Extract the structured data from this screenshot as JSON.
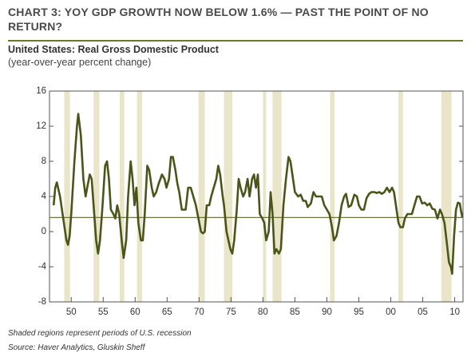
{
  "chart_data": {
    "type": "line",
    "title": "CHART 3: YOY GDP GROWTH NOW BELOW 1.6% — PAST THE POINT OF NO RETURN?",
    "subtitle": "United States: Real Gross Domestic Product",
    "y_label": "(year-over-year percent change)",
    "notes": [
      "Shaded regions represent periods of U.S. recession",
      "Source: Haver Analytics, Gluskin Sheff"
    ],
    "color": "#4b5419",
    "reference_line": 1.6,
    "recessions": [
      [
        1948.9,
        1949.8
      ],
      [
        1953.5,
        1954.4
      ],
      [
        1957.6,
        1958.3
      ],
      [
        1960.3,
        1961.1
      ],
      [
        1969.9,
        1970.9
      ],
      [
        1973.9,
        1975.2
      ],
      [
        1980.0,
        1980.5
      ],
      [
        1981.5,
        1982.9
      ],
      [
        1990.5,
        1991.2
      ],
      [
        2001.2,
        2001.9
      ],
      [
        2007.9,
        2009.5
      ]
    ],
    "xlim": [
      1946.6,
      2011.3
    ],
    "ylim": [
      -8,
      16
    ],
    "yticks": [
      -8,
      -4,
      0,
      4,
      8,
      12,
      16
    ],
    "xticks": [
      {
        "value": 1950,
        "label": "50"
      },
      {
        "value": 1955,
        "label": "55"
      },
      {
        "value": 1960,
        "label": "60"
      },
      {
        "value": 1965,
        "label": "65"
      },
      {
        "value": 1970,
        "label": "70"
      },
      {
        "value": 1975,
        "label": "75"
      },
      {
        "value": 1980,
        "label": "80"
      },
      {
        "value": 1985,
        "label": "85"
      },
      {
        "value": 1990,
        "label": "90"
      },
      {
        "value": 1995,
        "label": "95"
      },
      {
        "value": 2000,
        "label": "00"
      },
      {
        "value": 2005,
        "label": "05"
      },
      {
        "value": 2010,
        "label": "10"
      }
    ],
    "x": [
      1947.25,
      1947.5,
      1947.75,
      1948.25,
      1948.75,
      1949.25,
      1949.5,
      1949.75,
      1950.0,
      1950.5,
      1950.9,
      1951.1,
      1951.5,
      1951.9,
      1952.25,
      1952.5,
      1952.9,
      1953.2,
      1953.5,
      1953.9,
      1954.2,
      1954.5,
      1954.9,
      1955.3,
      1955.6,
      1955.9,
      1956.2,
      1956.6,
      1956.9,
      1957.2,
      1957.5,
      1957.9,
      1958.2,
      1958.6,
      1958.9,
      1959.3,
      1959.6,
      1959.9,
      1960.2,
      1960.5,
      1960.9,
      1961.2,
      1961.5,
      1961.9,
      1962.2,
      1962.6,
      1962.9,
      1963.3,
      1963.7,
      1964.2,
      1964.6,
      1964.9,
      1965.3,
      1965.6,
      1965.9,
      1966.3,
      1966.6,
      1966.9,
      1967.3,
      1967.6,
      1967.9,
      1968.3,
      1968.7,
      1969.1,
      1969.5,
      1969.9,
      1970.3,
      1970.6,
      1970.9,
      1971.2,
      1971.6,
      1971.9,
      1972.3,
      1972.7,
      1973.0,
      1973.3,
      1973.7,
      1973.9,
      1974.3,
      1974.6,
      1974.9,
      1975.2,
      1975.5,
      1975.9,
      1976.2,
      1976.5,
      1976.9,
      1977.2,
      1977.6,
      1977.9,
      1978.3,
      1978.6,
      1978.9,
      1979.2,
      1979.5,
      1979.9,
      1980.2,
      1980.5,
      1980.9,
      1981.2,
      1981.5,
      1981.8,
      1982.1,
      1982.5,
      1982.8,
      1983.2,
      1983.6,
      1984.0,
      1984.3,
      1984.7,
      1985.0,
      1985.5,
      1985.9,
      1986.3,
      1986.7,
      1987.0,
      1987.5,
      1987.9,
      1988.3,
      1988.7,
      1989.2,
      1989.6,
      1990.0,
      1990.4,
      1990.8,
      1991.1,
      1991.5,
      1991.9,
      1992.3,
      1992.7,
      1993.0,
      1993.4,
      1993.8,
      1994.3,
      1994.7,
      1995.0,
      1995.4,
      1995.8,
      1996.2,
      1996.6,
      1997.0,
      1997.4,
      1997.8,
      1998.2,
      1998.6,
      1999.0,
      1999.4,
      1999.8,
      2000.2,
      2000.5,
      2000.9,
      2001.2,
      2001.5,
      2001.9,
      2002.2,
      2002.6,
      2002.9,
      2003.3,
      2003.7,
      2004.1,
      2004.5,
      2004.9,
      2005.3,
      2005.7,
      2006.1,
      2006.5,
      2006.9,
      2007.3,
      2007.7,
      2008.0,
      2008.4,
      2008.8,
      2009.1,
      2009.4,
      2009.6,
      2009.9,
      2010.2,
      2010.5,
      2010.8,
      2011.0,
      2011.2
    ],
    "values": [
      3.0,
      5.0,
      5.6,
      4.0,
      1.5,
      -1.0,
      -1.5,
      -0.5,
      2,
      8,
      12,
      13.4,
      11,
      6,
      4,
      5,
      6.5,
      6,
      3,
      -1,
      -2.5,
      -1,
      3,
      7.5,
      8,
      6,
      2.5,
      2,
      1.5,
      3,
      2,
      -1,
      -3,
      -1,
      4,
      8,
      6,
      3,
      5,
      1,
      -1,
      -1,
      2,
      7.5,
      7,
      5,
      4,
      4.5,
      5.5,
      6.5,
      6,
      5,
      6,
      8.5,
      8.5,
      7,
      5.5,
      4.5,
      2.5,
      2.5,
      2.5,
      5,
      5,
      4,
      3,
      1.5,
      0,
      -0.2,
      0,
      3,
      3,
      4,
      5,
      6,
      7.5,
      6.5,
      4,
      3,
      0,
      -1,
      -2,
      -2.5,
      -1,
      2.5,
      6,
      5,
      4,
      4.5,
      6,
      4,
      6,
      6.5,
      5,
      6.5,
      2,
      1.5,
      1,
      -1,
      0,
      4.5,
      2,
      -2.5,
      -2,
      -2.5,
      -2,
      3,
      6,
      8.5,
      8,
      6,
      4.5,
      4,
      4.2,
      3.5,
      3.5,
      2.8,
      3.2,
      4.5,
      4,
      4,
      4,
      3,
      2.5,
      2,
      0.5,
      -1,
      -0.5,
      1,
      3,
      4,
      4.3,
      2.8,
      3,
      4.2,
      4,
      3,
      2.5,
      2.5,
      3.8,
      4.3,
      4.5,
      4.5,
      4.4,
      4.5,
      4.3,
      4.5,
      5,
      4.5,
      5,
      4.5,
      2.5,
      1,
      0.5,
      0.5,
      1.5,
      2,
      2,
      2,
      3,
      4,
      4,
      3.2,
      3.3,
      3,
      3.2,
      2.6,
      2.5,
      1.5,
      2.5,
      2,
      1,
      -1.5,
      -3.5,
      -4,
      -4.8,
      -0.5,
      2.5,
      3.3,
      3.2,
      2.3,
      1.6
    ]
  }
}
